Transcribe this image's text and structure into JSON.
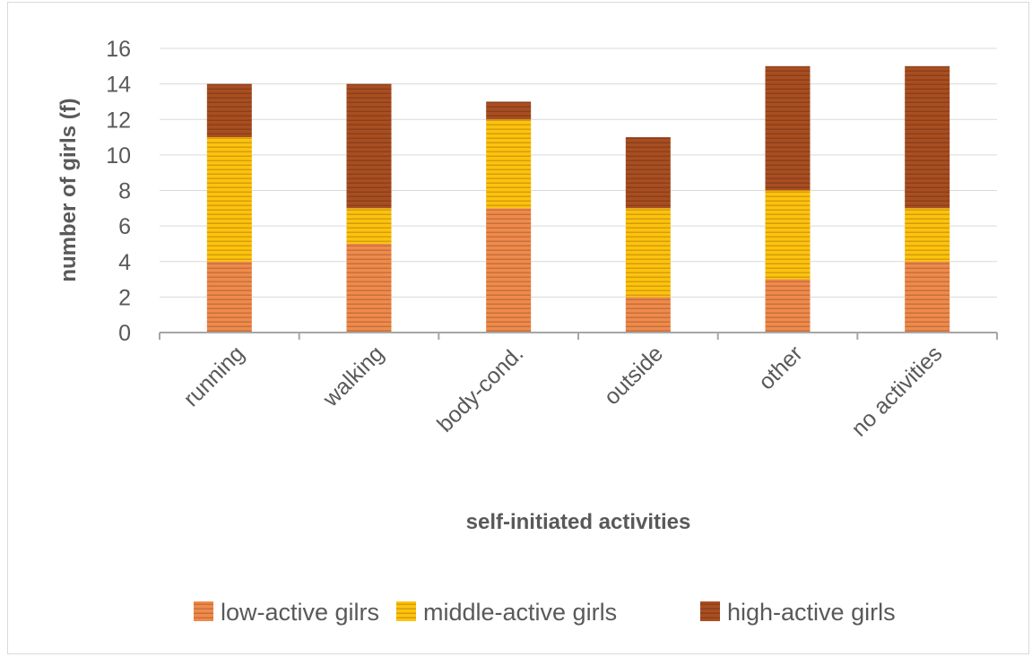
{
  "chart_data": {
    "type": "bar",
    "stacked": true,
    "categories": [
      "running",
      "walking",
      "body-cond.",
      "outside",
      "other",
      "no activities"
    ],
    "series": [
      {
        "name": "low-active gilrs",
        "values": [
          4,
          5,
          7,
          2,
          3,
          4
        ],
        "color": "#F08A4B"
      },
      {
        "name": "middle-active girls",
        "values": [
          7,
          2,
          5,
          5,
          5,
          3
        ],
        "color": "#FFC20E"
      },
      {
        "name": "high-active girls",
        "values": [
          3,
          7,
          1,
          4,
          7,
          8
        ],
        "color": "#A94E21"
      }
    ],
    "title": "",
    "xlabel": "self-initiated activities",
    "ylabel": "number of girls (f)",
    "ylim": [
      0,
      16
    ],
    "yticks": [
      0,
      2,
      4,
      6,
      8,
      10,
      12,
      14,
      16
    ],
    "grid": true,
    "legend_position": "bottom",
    "bar_pattern": "horizontal-stripes"
  }
}
